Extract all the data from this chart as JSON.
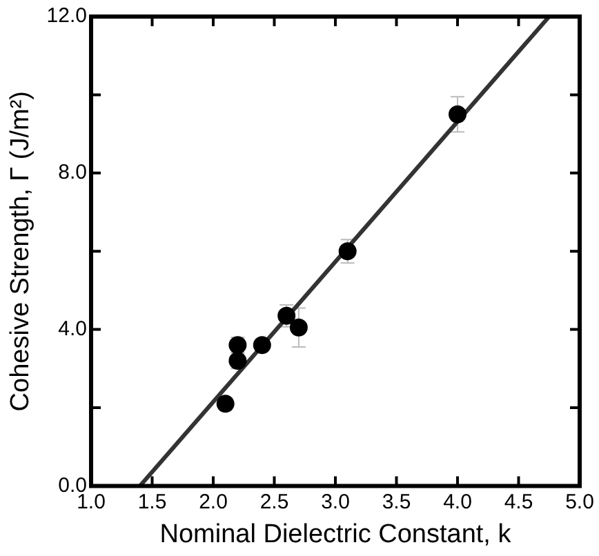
{
  "chart_data": {
    "type": "scatter",
    "xlabel": "Nominal Dielectric Constant, k",
    "ylabel": "Cohesive Strength, Γ (J/m²)",
    "xlim": [
      1.0,
      5.0
    ],
    "xticks": [
      {
        "value": 1.0,
        "label": "1.0"
      },
      {
        "value": 1.5,
        "label": "1.5"
      },
      {
        "value": 2.0,
        "label": "2.0"
      },
      {
        "value": 2.5,
        "label": "2.5"
      },
      {
        "value": 3.0,
        "label": "3.0"
      },
      {
        "value": 3.5,
        "label": "3.5"
      },
      {
        "value": 4.0,
        "label": "4.0"
      },
      {
        "value": 4.5,
        "label": "4.5"
      },
      {
        "value": 5.0,
        "label": "5.0"
      }
    ],
    "ylim": [
      0,
      12
    ],
    "yticks": [
      {
        "value": 0,
        "label": "0.0"
      },
      {
        "value": 2,
        "label": null
      },
      {
        "value": 4,
        "label": "4.0"
      },
      {
        "value": 6,
        "label": null
      },
      {
        "value": 8,
        "label": "8.0"
      },
      {
        "value": 10,
        "label": null
      },
      {
        "value": 12,
        "label": "12.0"
      }
    ],
    "grid": false,
    "legend": false,
    "series": [
      {
        "color": "#000000",
        "marker": "circle",
        "x": [
          2.1,
          2.2,
          2.2,
          2.4,
          2.6,
          2.7,
          3.1,
          4.0
        ],
        "values": [
          2.1,
          3.6,
          3.2,
          3.6,
          4.35,
          4.05,
          6.0,
          9.5
        ],
        "errors": [
          0.15,
          0.2,
          0.2,
          0.1,
          0.28,
          0.5,
          0.3,
          0.45
        ]
      },
      {
        "type": "line",
        "color": "#333333",
        "marker": "none",
        "line_style": "solid",
        "x": [
          1.4,
          4.75
        ],
        "values": [
          0,
          12
        ]
      }
    ]
  }
}
